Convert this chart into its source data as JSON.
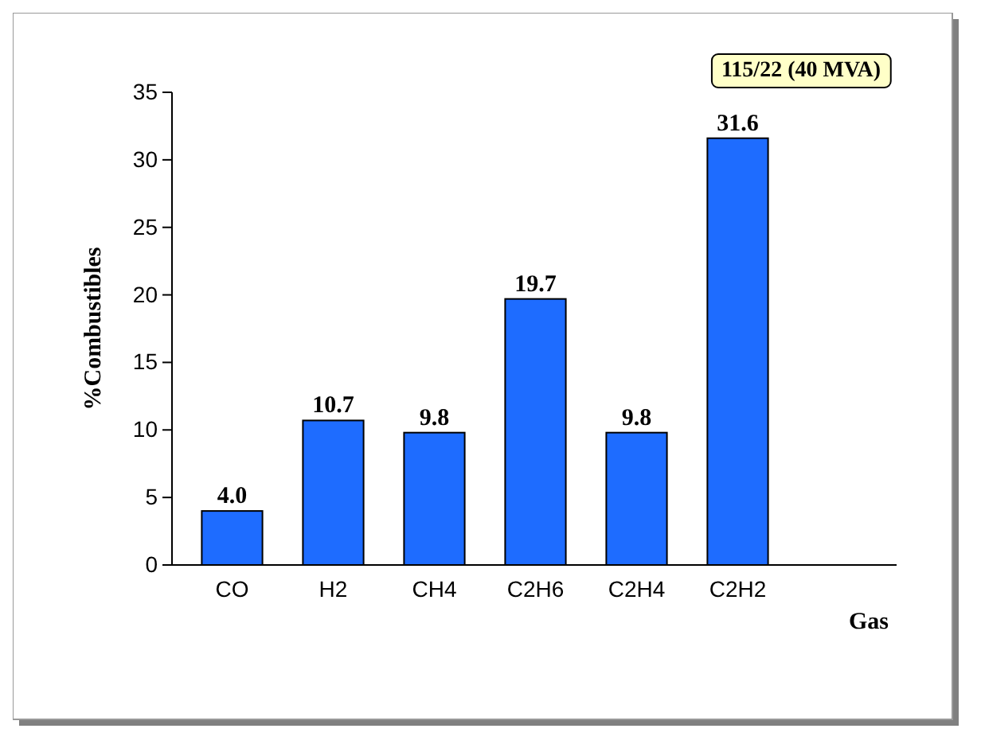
{
  "chart_data": {
    "type": "bar",
    "title": "115/22 (40 MVA)",
    "xlabel": "Gas",
    "ylabel": "%Combustibles",
    "categories": [
      "CO",
      "H2",
      "CH4",
      "C2H6",
      "C2H4",
      "C2H2"
    ],
    "series": [
      {
        "color": "#1e6cff",
        "values": [
          4.0,
          10.7,
          9.8,
          19.7,
          9.8,
          31.6
        ],
        "value_labels": [
          "4.0",
          "10.7",
          "9.8",
          "19.7",
          "9.8",
          "31.6"
        ]
      }
    ],
    "ylim": [
      0,
      35
    ],
    "yticks": [
      0,
      5,
      10,
      15,
      20,
      25,
      30,
      35
    ],
    "grid": false
  }
}
